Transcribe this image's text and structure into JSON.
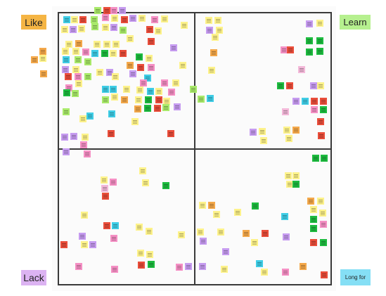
{
  "board": {
    "corners": {
      "like": "Like",
      "learn": "Learn",
      "lack": "Lack",
      "long_for": "Long for"
    }
  },
  "colors": {
    "like": "#f5b544",
    "learn": "#b6f08f",
    "lack": "#dcb3f2",
    "long_for": "#85dff5",
    "frame": "#3a3a3a",
    "sticky_palette": {
      "y": "#fdf28a",
      "o": "#f4a84a",
      "p": "#f58fc4",
      "v": "#c69bf0",
      "c": "#3fcde6",
      "g": "#1dbb3f",
      "r": "#ea4d3a",
      "l": "#a9ea6a",
      "k": "#f3b8d9"
    }
  }
}
